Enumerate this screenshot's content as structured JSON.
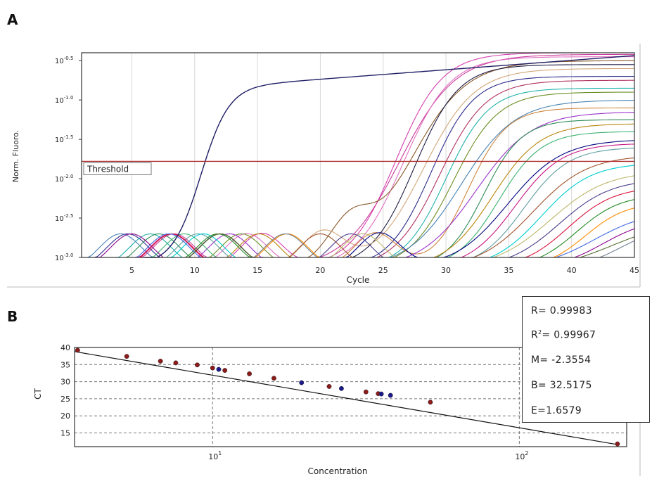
{
  "panel_labels": {
    "a": "A",
    "b": "B"
  },
  "chart_data": [
    {
      "type": "line",
      "panel": "A",
      "xlabel": "Cycle",
      "ylabel": "Norm. Fluoro.",
      "log_scale_y": true,
      "xlim": [
        1,
        45
      ],
      "ylim_log10": [
        -3.0,
        -0.4
      ],
      "xticks": [
        5,
        10,
        15,
        20,
        25,
        30,
        35,
        40,
        45
      ],
      "yticks": [
        {
          "exp": -3.0,
          "label": "-3.0"
        },
        {
          "exp": -2.5,
          "label": "-2.5"
        },
        {
          "exp": -2.0,
          "label": "-2.0"
        },
        {
          "exp": -1.5,
          "label": "-1.5"
        },
        {
          "exp": -1.0,
          "label": "-1.0"
        },
        {
          "exp": -0.5,
          "label": "-0.5"
        }
      ],
      "threshold": {
        "label": "Threshold",
        "exp": -1.78
      },
      "grid": "vertical",
      "early_curve": {
        "ct": 10.5,
        "start": 6.0
      },
      "amplification_ct_values": [
        26.0,
        26.3,
        26.6,
        27.0,
        27.5,
        28.2,
        28.8,
        29.5,
        30.0,
        30.6,
        31.2,
        31.8,
        32.4,
        33.0,
        33.7,
        34.2,
        34.9,
        35.5,
        36.2,
        36.9,
        37.6,
        38.3,
        39.0,
        39.7,
        40.4,
        41.1,
        41.8,
        42.5,
        43.2,
        43.9
      ],
      "plateau_values_log10": [
        -0.4,
        -0.42,
        -0.45,
        -0.5,
        -0.55,
        -0.6,
        -0.7,
        -0.75,
        -0.85,
        -0.9,
        -1.0,
        -1.1,
        -1.15,
        -1.25,
        -1.3,
        -1.4,
        -1.5,
        -1.55,
        -1.6,
        -1.7,
        -1.8,
        -1.9,
        -2.0,
        -2.1,
        -2.2,
        -2.3,
        -2.4,
        -2.5,
        -2.55,
        -2.6
      ],
      "series_colors": [
        "#d63fb0",
        "#c93a9a",
        "#e070c0",
        "#8b5a2b",
        "#1a1a40",
        "#d2a679",
        "#2b2b8c",
        "#b03060",
        "#20b2aa",
        "#6b8e23",
        "#4682b4",
        "#cd853f",
        "#9932cc",
        "#2e8b57",
        "#b8860b",
        "#3cb371",
        "#000080",
        "#c71585",
        "#5f9ea0",
        "#a0522d",
        "#00ced1",
        "#bdb76b",
        "#483d8b",
        "#dc143c",
        "#228b22",
        "#ff8c00",
        "#4169e1",
        "#8b008b",
        "#556b2f",
        "#708090"
      ]
    },
    {
      "type": "scatter",
      "panel": "B",
      "xlabel": "Concentration",
      "ylabel": "CT",
      "log_scale_x": true,
      "xlim_log10": [
        0.55,
        2.35
      ],
      "ylim": [
        11,
        40
      ],
      "yticks": [
        15,
        20,
        25,
        30,
        35,
        40
      ],
      "xticks": [
        {
          "exp": 1,
          "base": "10",
          "exp_label": "1"
        },
        {
          "exp": 2,
          "base": "10",
          "exp_label": "2"
        }
      ],
      "grid": "dashed",
      "fit_line": {
        "x_log10": [
          0.55,
          2.32
        ],
        "y": [
          38.8,
          11.6
        ]
      },
      "points": [
        {
          "x_log10": 0.56,
          "y": 39.2,
          "color": "#8b1a1a"
        },
        {
          "x_log10": 0.72,
          "y": 37.4,
          "color": "#8b1a1a"
        },
        {
          "x_log10": 0.83,
          "y": 36.0,
          "color": "#8b1a1a"
        },
        {
          "x_log10": 0.88,
          "y": 35.5,
          "color": "#8b1a1a"
        },
        {
          "x_log10": 0.95,
          "y": 34.9,
          "color": "#8b1a1a"
        },
        {
          "x_log10": 1.0,
          "y": 34.0,
          "color": "#8b1a1a"
        },
        {
          "x_log10": 1.02,
          "y": 33.6,
          "color": "#1a1a8b"
        },
        {
          "x_log10": 1.04,
          "y": 33.3,
          "color": "#8b1a1a"
        },
        {
          "x_log10": 1.12,
          "y": 32.3,
          "color": "#8b1a1a"
        },
        {
          "x_log10": 1.2,
          "y": 31.0,
          "color": "#8b1a1a"
        },
        {
          "x_log10": 1.29,
          "y": 29.7,
          "color": "#1a1a8b"
        },
        {
          "x_log10": 1.38,
          "y": 28.6,
          "color": "#8b1a1a"
        },
        {
          "x_log10": 1.42,
          "y": 28.0,
          "color": "#1a1a8b"
        },
        {
          "x_log10": 1.5,
          "y": 27.0,
          "color": "#8b1a1a"
        },
        {
          "x_log10": 1.54,
          "y": 26.5,
          "color": "#8b1a1a"
        },
        {
          "x_log10": 1.55,
          "y": 26.4,
          "color": "#1a1a8b"
        },
        {
          "x_log10": 1.58,
          "y": 26.0,
          "color": "#1a1a8b"
        },
        {
          "x_log10": 1.71,
          "y": 24.0,
          "color": "#8b1a1a"
        },
        {
          "x_log10": 2.32,
          "y": 11.8,
          "color": "#8b1a1a"
        }
      ],
      "stats": {
        "r": "R= 0.99983",
        "r2_prefix": "R",
        "r2_sup": "2",
        "r2_value": "= 0.99967",
        "m": "M= -2.3554",
        "b": "B= 32.5175",
        "e": "E=1.6579"
      }
    }
  ]
}
